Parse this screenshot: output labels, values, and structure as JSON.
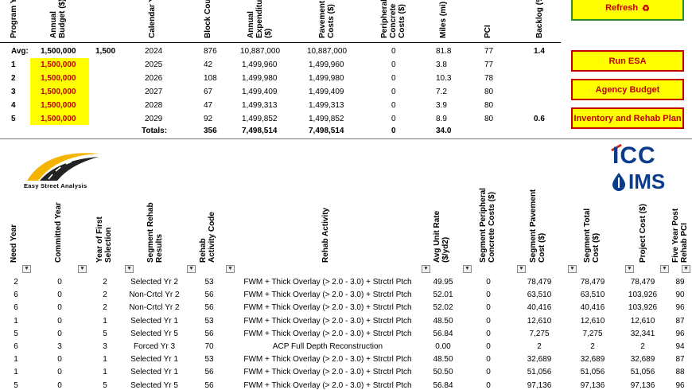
{
  "top_headers": {
    "program_year": "Program Year",
    "annual_budget": "Annual Budget ($)",
    "calendar_year": "Calendar Year",
    "block_count": "Block Count",
    "annual_expenditure": "Annual Expenditure ($)",
    "pavement_costs": "Pavement Costs ($)",
    "peripheral_costs": "Peripheral Concrete Costs ($)",
    "miles": "Miles (mi)",
    "pci": "PCI",
    "backlog": "Backlog (%)"
  },
  "avg_row": {
    "label": "Avg:",
    "budget": "1,500,000",
    "extra": "1,500",
    "calendar_year": "2024",
    "block_count": "876",
    "expenditure": "10,887,000",
    "pavement": "10,887,000",
    "peripheral": "0",
    "miles": "81.8",
    "pci": "77",
    "backlog": "1.4"
  },
  "year_rows": [
    {
      "py": "1",
      "budget": "1,500,000",
      "cy": "2025",
      "blocks": "42",
      "exp": "1,499,960",
      "pav": "1,499,960",
      "per": "0",
      "miles": "3.8",
      "pci": "77",
      "backlog": ""
    },
    {
      "py": "2",
      "budget": "1,500,000",
      "cy": "2026",
      "blocks": "108",
      "exp": "1,499,980",
      "pav": "1,499,980",
      "per": "0",
      "miles": "10.3",
      "pci": "78",
      "backlog": ""
    },
    {
      "py": "3",
      "budget": "1,500,000",
      "cy": "2027",
      "blocks": "67",
      "exp": "1,499,409",
      "pav": "1,499,409",
      "per": "0",
      "miles": "7.2",
      "pci": "80",
      "backlog": ""
    },
    {
      "py": "4",
      "budget": "1,500,000",
      "cy": "2028",
      "blocks": "47",
      "exp": "1,499,313",
      "pav": "1,499,313",
      "per": "0",
      "miles": "3.9",
      "pci": "80",
      "backlog": ""
    },
    {
      "py": "5",
      "budget": "1,500,000",
      "cy": "2029",
      "blocks": "92",
      "exp": "1,499,852",
      "pav": "1,499,852",
      "per": "0",
      "miles": "8.9",
      "pci": "80",
      "backlog": "0.6"
    }
  ],
  "totals_row": {
    "label": "Totals:",
    "blocks": "356",
    "exp": "7,498,514",
    "pav": "7,498,514",
    "per": "0",
    "miles": "34.0"
  },
  "buttons": {
    "refresh": "Refresh",
    "refresh_icon": "♻",
    "run_esa": "Run ESA",
    "agency_budget": "Agency Budget",
    "inventory": "Inventory and Rehab Plan"
  },
  "logo_left": {
    "text": "Easy Street Analysis"
  },
  "logo_right": {
    "line1": "ICC",
    "line2": "IMS"
  },
  "colors": {
    "button_fill": "#ffff00",
    "button_border": "#c00000",
    "refresh_border": "#2e8b2e",
    "highlight": "#ffff00",
    "icc_blue": "#0b3c8c",
    "logo_gold": "#f5b400"
  },
  "lower_headers": {
    "need_year": "Need Year",
    "committed_year": "Committed Year",
    "first_selection": "Year of First Selection",
    "segment_rehab_results": "Segment Rehab Results",
    "rehab_activity_code": "Rehab Activity Code",
    "rehab_activity": "Rehab Activity",
    "avg_unit_rate": "Avg Unit Rate ($/yd2)",
    "seg_peripheral": "Segment Peripheral Concrete Costs ($)",
    "seg_pavement": "Segment Pavement Cost ($)",
    "seg_total": "Segment Total Cost ($)",
    "project_cost": "Project Cost ($)",
    "five_year_pci": "Five Year Post Rehab PCI"
  },
  "lower_rows": [
    {
      "need": "2",
      "committed": "0",
      "first": "2",
      "result": "Selected Yr 2",
      "code": "53",
      "activity": "FWM + Thick Overlay (> 2.0 - 3.0) + Strctrl Ptch",
      "rate": "49.95",
      "peri": "0",
      "pave": "78,479",
      "total": "78,479",
      "project": "78,479",
      "pci": "89"
    },
    {
      "need": "6",
      "committed": "0",
      "first": "2",
      "result": "Non-Crtcl Yr 2",
      "code": "56",
      "activity": "FWM + Thick Overlay (> 2.0 - 3.0) + Strctrl Ptch",
      "rate": "52.01",
      "peri": "0",
      "pave": "63,510",
      "total": "63,510",
      "project": "103,926",
      "pci": "90"
    },
    {
      "need": "6",
      "committed": "0",
      "first": "2",
      "result": "Non-Crtcl Yr 2",
      "code": "56",
      "activity": "FWM + Thick Overlay (> 2.0 - 3.0) + Strctrl Ptch",
      "rate": "52.02",
      "peri": "0",
      "pave": "40,416",
      "total": "40,416",
      "project": "103,926",
      "pci": "96"
    },
    {
      "need": "1",
      "committed": "0",
      "first": "1",
      "result": "Selected Yr 1",
      "code": "53",
      "activity": "FWM + Thick Overlay (> 2.0 - 3.0) + Strctrl Ptch",
      "rate": "48.50",
      "peri": "0",
      "pave": "12,610",
      "total": "12,610",
      "project": "12,610",
      "pci": "87"
    },
    {
      "need": "5",
      "committed": "0",
      "first": "5",
      "result": "Selected Yr 5",
      "code": "56",
      "activity": "FWM + Thick Overlay (> 2.0 - 3.0) + Strctrl Ptch",
      "rate": "56.84",
      "peri": "0",
      "pave": "7,275",
      "total": "7,275",
      "project": "32,341",
      "pci": "96"
    },
    {
      "need": "6",
      "committed": "3",
      "first": "3",
      "result": "Forced Yr 3",
      "code": "70",
      "activity": "ACP Full Depth Reconstruction",
      "rate": "0.00",
      "peri": "0",
      "pave": "2",
      "total": "2",
      "project": "2",
      "pci": "94"
    },
    {
      "need": "1",
      "committed": "0",
      "first": "1",
      "result": "Selected Yr 1",
      "code": "53",
      "activity": "FWM + Thick Overlay (> 2.0 - 3.0) + Strctrl Ptch",
      "rate": "48.50",
      "peri": "0",
      "pave": "32,689",
      "total": "32,689",
      "project": "32,689",
      "pci": "87"
    },
    {
      "need": "1",
      "committed": "0",
      "first": "1",
      "result": "Selected Yr 1",
      "code": "56",
      "activity": "FWM + Thick Overlay (> 2.0 - 3.0) + Strctrl Ptch",
      "rate": "50.50",
      "peri": "0",
      "pave": "51,056",
      "total": "51,056",
      "project": "51,056",
      "pci": "88"
    },
    {
      "need": "5",
      "committed": "0",
      "first": "5",
      "result": "Selected Yr 5",
      "code": "56",
      "activity": "FWM + Thick Overlay (> 2.0 - 3.0) + Strctrl Ptch",
      "rate": "56.84",
      "peri": "0",
      "pave": "97,136",
      "total": "97,136",
      "project": "97,136",
      "pci": "96"
    }
  ]
}
